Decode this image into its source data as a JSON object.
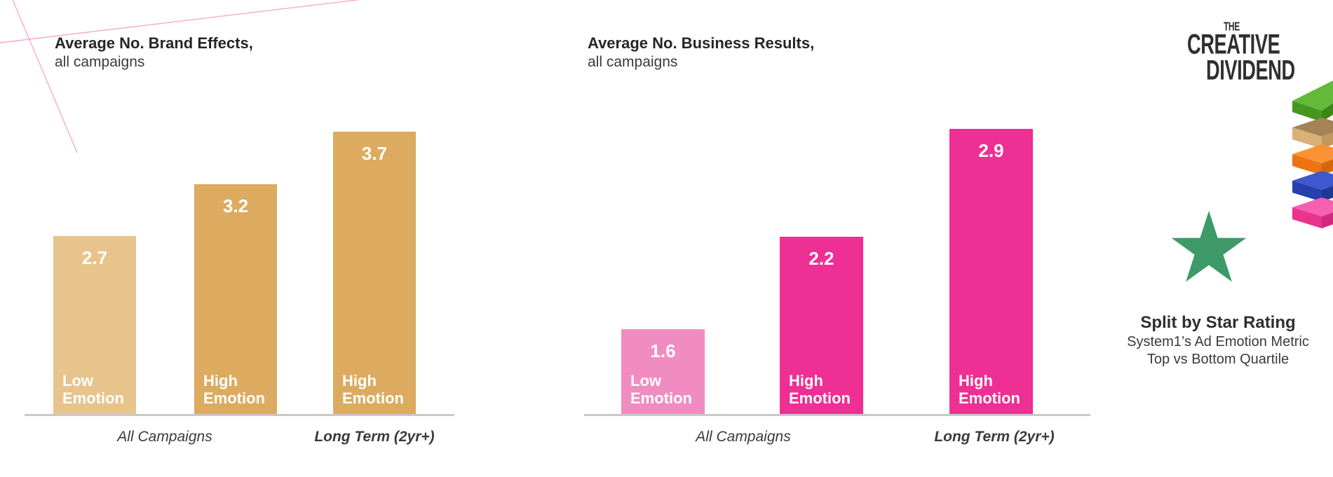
{
  "page": {
    "background": "#ffffff",
    "axis_color": "#c9c9c9"
  },
  "logo": {
    "line1": "THE",
    "line2": "CREATIVE",
    "line3": "DIVIDEND",
    "color": "#ED2E92"
  },
  "annotation": {
    "title": "Split by Star Rating",
    "line1": "System1’s Ad Emotion Metric",
    "line2": "Top vs Bottom Quartile",
    "star_color": "#3F9A69"
  },
  "icons": {
    "star": "star-icon",
    "stack": "layered-bars-3d-icon",
    "deco": "decorative-frame-lines",
    "stack_colors": [
      "#46971E",
      "#D8B078",
      "#EE7412",
      "#2740AE",
      "#E8338F"
    ]
  },
  "chart_data": [
    {
      "type": "bar",
      "title": "Average No. Brand Effects,",
      "subtitle": "all campaigns",
      "groups": [
        "All Campaigns",
        "Long Term (2yr+)"
      ],
      "categories": [
        "Low Emotion",
        "High Emotion",
        "High Emotion"
      ],
      "values": [
        2.7,
        3.2,
        3.7
      ],
      "bar_colors": [
        "#E7C48C",
        "#DCAB60",
        "#DCAB60"
      ],
      "value_label_color": "#ffffff",
      "ylim": [
        1.0,
        3.95
      ],
      "grid": false,
      "legend": false,
      "value_labels": "inside-top",
      "category_labels": "inside-bottom"
    },
    {
      "type": "bar",
      "title": "Average No. Business Results,",
      "subtitle": "all campaigns",
      "groups": [
        "All Campaigns",
        "Long Term (2yr+)"
      ],
      "categories": [
        "Low Emotion",
        "High Emotion",
        "High Emotion"
      ],
      "values": [
        1.6,
        2.2,
        2.9
      ],
      "bar_colors": [
        "#F18CC2",
        "#EE2F93",
        "#EE2F93"
      ],
      "value_label_color": "#ffffff",
      "ylim": [
        1.05,
        3.05
      ],
      "grid": false,
      "legend": false,
      "value_labels": "inside-top",
      "category_labels": "inside-bottom"
    }
  ]
}
